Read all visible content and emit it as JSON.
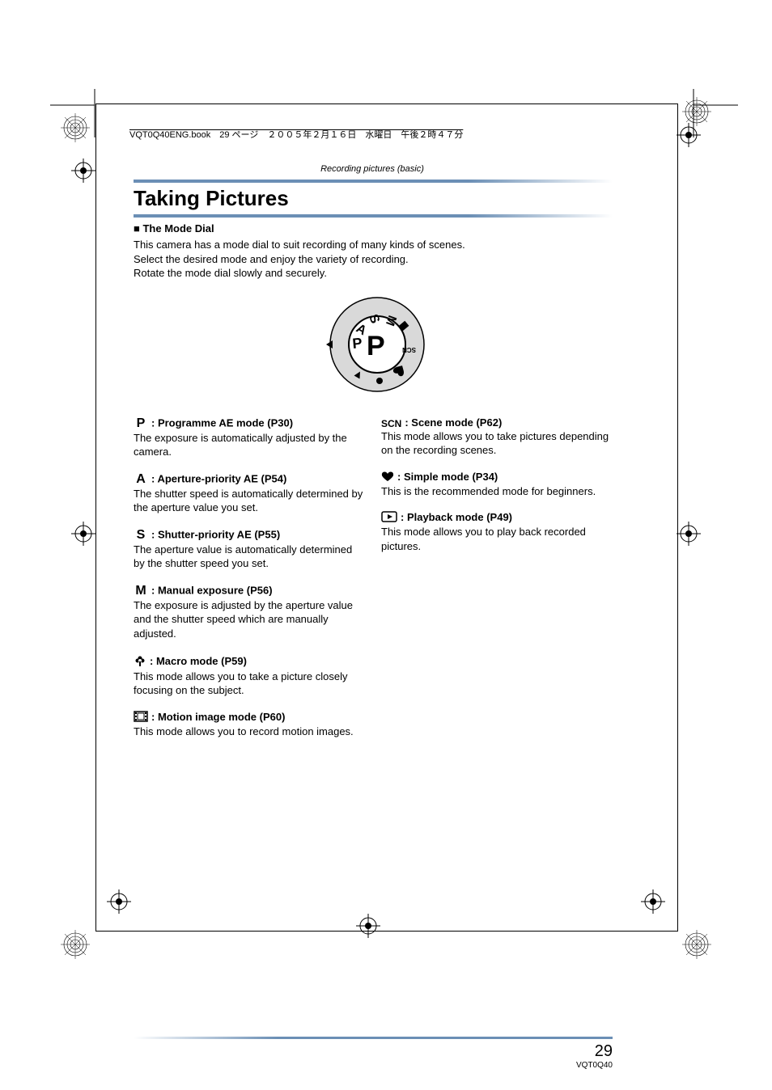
{
  "header_text": "VQT0Q40ENG.book　29 ページ　２００５年２月１６日　水曜日　午後２時４７分",
  "section_header": "Recording pictures (basic)",
  "title": "Taking Pictures",
  "subheading_bullet": "■",
  "subheading": "The Mode Dial",
  "intro_lines": [
    "This camera has a mode dial to suit recording of many kinds of scenes.",
    "Select the desired mode and enjoy the variety of recording.",
    "Rotate the mode dial slowly and securely."
  ],
  "dial": {
    "outer_labels": [
      "P",
      "A",
      "S",
      "M"
    ],
    "small_icons": [
      "movie",
      "scene",
      "heart",
      "flower",
      "play"
    ],
    "indicator": "◁",
    "big_letter": "P"
  },
  "left_modes": [
    {
      "icon": "P",
      "icon_type": "bold-serif",
      "title": ":  Programme AE mode (P30)",
      "desc": "The exposure is automatically adjusted by the camera."
    },
    {
      "icon": "A",
      "icon_type": "bold-serif",
      "title": ":  Aperture-priority AE (P54)",
      "desc": "The shutter speed is automatically determined by the aperture value you set."
    },
    {
      "icon": "S",
      "icon_type": "bold-serif",
      "title": ":  Shutter-priority AE (P55)",
      "desc": "The aperture value is automatically determined by the shutter speed you set."
    },
    {
      "icon": "M",
      "icon_type": "bold-serif",
      "title": ":  Manual exposure (P56)",
      "desc": "The exposure is adjusted by the aperture value and the shutter speed which are manually adjusted."
    },
    {
      "icon": "flower",
      "icon_type": "svg",
      "title": ":  Macro mode (P59)",
      "desc": "This mode allows you to take a picture closely focusing on the subject."
    },
    {
      "icon": "film",
      "icon_type": "svg",
      "title": ":  Motion image mode (P60)",
      "desc": "This mode allows you to record motion images."
    }
  ],
  "right_modes": [
    {
      "icon": "SCN",
      "icon_type": "scn",
      "title": ":  Scene mode (P62)",
      "desc": "This mode allows you to take pictures depending on the recording scenes."
    },
    {
      "icon": "heart",
      "icon_type": "svg",
      "title": ":  Simple mode (P34)",
      "desc": "This is the recommended mode for beginners."
    },
    {
      "icon": "play",
      "icon_type": "svg",
      "title": ":  Playback mode (P49)",
      "desc": "This mode allows you to play back recorded pictures."
    }
  ],
  "page_number": "29",
  "doc_code": "VQT0Q40",
  "colors": {
    "accent": "#6b8fb5",
    "text": "#000000",
    "bg": "#ffffff",
    "dial_fill": "#d9d9d9"
  }
}
